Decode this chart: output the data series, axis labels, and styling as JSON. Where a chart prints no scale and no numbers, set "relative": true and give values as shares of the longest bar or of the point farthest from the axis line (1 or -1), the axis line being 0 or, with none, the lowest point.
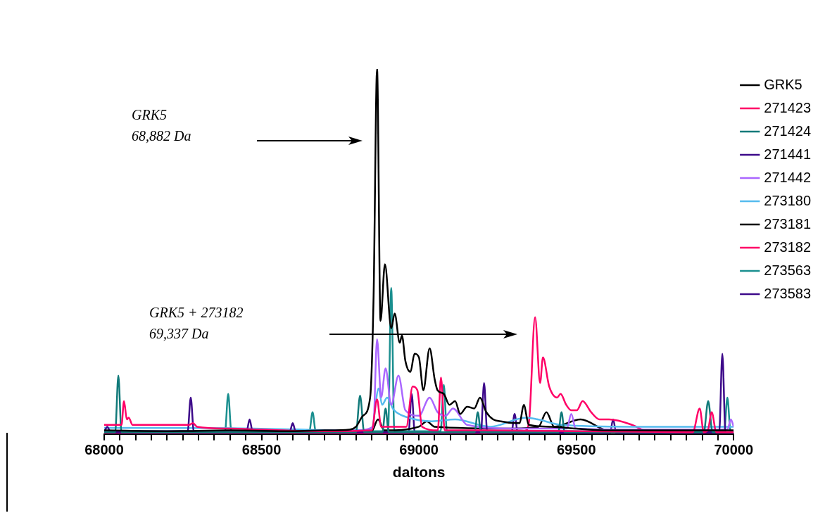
{
  "chart_data": {
    "type": "line",
    "relative": true,
    "xlabel": "daltons",
    "xlim": [
      68000,
      70000
    ],
    "xticks": [
      68000,
      {
        "value": 68050,
        "label": null
      },
      {
        "value": 68100,
        "label": null
      },
      {
        "value": 68150,
        "label": null
      },
      {
        "value": 68200,
        "label": null
      },
      {
        "value": 68250,
        "label": null
      },
      {
        "value": 68300,
        "label": null
      },
      {
        "value": 68350,
        "label": null
      },
      {
        "value": 68400,
        "label": null
      },
      {
        "value": 68450,
        "label": null
      },
      68500,
      {
        "value": 68550,
        "label": null
      },
      {
        "value": 68600,
        "label": null
      },
      {
        "value": 68650,
        "label": null
      },
      {
        "value": 68700,
        "label": null
      },
      {
        "value": 68750,
        "label": null
      },
      {
        "value": 68800,
        "label": null
      },
      {
        "value": 68850,
        "label": null
      },
      {
        "value": 68900,
        "label": null
      },
      {
        "value": 68950,
        "label": null
      },
      69000,
      {
        "value": 69050,
        "label": null
      },
      {
        "value": 69100,
        "label": null
      },
      {
        "value": 69150,
        "label": null
      },
      {
        "value": 69200,
        "label": null
      },
      {
        "value": 69250,
        "label": null
      },
      {
        "value": 69300,
        "label": null
      },
      {
        "value": 69350,
        "label": null
      },
      {
        "value": 69400,
        "label": null
      },
      {
        "value": 69450,
        "label": null
      },
      69500,
      {
        "value": 69550,
        "label": null
      },
      {
        "value": 69600,
        "label": null
      },
      {
        "value": 69650,
        "label": null
      },
      {
        "value": 69700,
        "label": null
      },
      {
        "value": 69750,
        "label": null
      },
      {
        "value": 69800,
        "label": null
      },
      {
        "value": 69850,
        "label": null
      },
      {
        "value": 69900,
        "label": null
      },
      {
        "value": 69950,
        "label": null
      },
      70000
    ],
    "grid": false,
    "legend": "top right",
    "marker": "none",
    "line_style": "solid",
    "annotations": [
      "GRK5\n68,882 Da",
      "GRK5 + 273182\n69,337 Da"
    ],
    "series": [
      {
        "name": "GRK5",
        "color": "#000000",
        "x": [
          68000,
          68200,
          68400,
          68600,
          68700,
          68780,
          68800,
          68822,
          68845,
          68856,
          68867,
          68878,
          68892,
          68912,
          68923,
          68939,
          68946,
          68957,
          68973,
          68986,
          69000,
          69014,
          69034,
          69050,
          69059,
          69079,
          69097,
          69115,
          69131,
          69153,
          69176,
          69194,
          69214,
          69236,
          69259,
          69304,
          69320,
          69333,
          69349,
          69420,
          69500,
          69600,
          69800,
          70000
        ],
        "values": [
          0.01,
          0.008,
          0.01,
          0.008,
          0.01,
          0.012,
          0.02,
          0.05,
          0.1,
          0.38,
          1,
          0.31,
          0.465,
          0.29,
          0.33,
          0.25,
          0.27,
          0.2,
          0.17,
          0.22,
          0.21,
          0.12,
          0.235,
          0.15,
          0.12,
          0.11,
          0.08,
          0.09,
          0.055,
          0.075,
          0.07,
          0.1,
          0.06,
          0.04,
          0.035,
          0.03,
          0.03,
          0.08,
          0.025,
          0.02,
          0.015,
          0.01,
          0.01,
          0.01
        ]
      },
      {
        "name": "271423",
        "color": "#ff0066",
        "x": [
          68000,
          68040,
          68055,
          68063,
          68072,
          68078,
          68090,
          68200,
          68270,
          68282,
          68295,
          68400,
          68500,
          68700,
          68850,
          68867,
          68880,
          68960,
          68980,
          68995,
          69010,
          69060,
          69070,
          69082,
          69200,
          69500,
          69870,
          69892,
          69905,
          69918,
          69930,
          69945,
          70000
        ],
        "values": [
          0.025,
          0.025,
          0.025,
          0.09,
          0.04,
          0.045,
          0.025,
          0.025,
          0.025,
          0.03,
          0.02,
          0.015,
          0.012,
          0.008,
          0.01,
          0.095,
          0.02,
          0.02,
          0.13,
          0.12,
          0.02,
          0.01,
          0.155,
          0.01,
          0.01,
          0.008,
          0.005,
          0.07,
          0.005,
          0.01,
          0.06,
          0.005,
          0.005
        ]
      },
      {
        "name": "271424",
        "color": "#117a7a",
        "x": [
          68000,
          68035,
          68045,
          68055,
          68300,
          68800,
          68813,
          68826,
          68884,
          68894,
          68904,
          69177,
          69187,
          69197,
          69443,
          69453,
          69463,
          69905,
          69919,
          69933,
          70000
        ],
        "values": [
          0.005,
          0.005,
          0.16,
          0.005,
          0.005,
          0.005,
          0.105,
          0.005,
          0.005,
          0.07,
          0.005,
          0.005,
          0.06,
          0.005,
          0.005,
          0.06,
          0.005,
          0.005,
          0.09,
          0.005,
          0.005
        ]
      },
      {
        "name": "271441",
        "color": "#3d0a8a",
        "x": [
          68000,
          68010,
          68020,
          68265,
          68275,
          68285,
          68452,
          68462,
          68472,
          68589,
          68599,
          68609,
          69197,
          69207,
          69217,
          69954,
          69964,
          69974,
          70000
        ],
        "values": [
          0.005,
          0.02,
          0.005,
          0.005,
          0.1,
          0.005,
          0.005,
          0.04,
          0.005,
          0.005,
          0.03,
          0.005,
          0.005,
          0.14,
          0.005,
          0.005,
          0.22,
          0.005,
          0.005
        ]
      },
      {
        "name": "271442",
        "color": "#aa66ff",
        "x": [
          68000,
          68500,
          68800,
          68855,
          68867,
          68880,
          68894,
          68912,
          68935,
          68957,
          69000,
          69034,
          69059,
          69085,
          69108,
          69153,
          69300,
          69470,
          69484,
          69498,
          69700,
          69980,
          69991,
          70000
        ],
        "values": [
          0.008,
          0.008,
          0.01,
          0.02,
          0.26,
          0.1,
          0.18,
          0.08,
          0.16,
          0.065,
          0.05,
          0.1,
          0.06,
          0.05,
          0.07,
          0.025,
          0.015,
          0.015,
          0.055,
          0.015,
          0.012,
          0.012,
          0.04,
          0.02
        ]
      },
      {
        "name": "273180",
        "color": "#55bbee",
        "x": [
          68000,
          68400,
          68800,
          68850,
          68872,
          68883,
          68899,
          68917,
          68928,
          68966,
          69041,
          69115,
          69227,
          69340,
          69378,
          69453,
          69678,
          70000
        ],
        "values": [
          0.017,
          0.016,
          0.01,
          0.015,
          0.125,
          0.08,
          0.1,
          0.07,
          0.06,
          0.045,
          0.035,
          0.04,
          0.02,
          0.045,
          0.04,
          0.025,
          0.02,
          0.02
        ]
      },
      {
        "name": "273181",
        "color": "#000000",
        "x": [
          68000,
          68500,
          68850,
          68870,
          68890,
          69000,
          69025,
          69050,
          69300,
          69380,
          69405,
          69430,
          69514,
          69600,
          70000
        ],
        "values": [
          0.005,
          0.005,
          0.008,
          0.04,
          0.01,
          0.02,
          0.035,
          0.02,
          0.015,
          0.02,
          0.06,
          0.02,
          0.04,
          0.01,
          0.005
        ]
      },
      {
        "name": "273182",
        "color": "#ff0066",
        "x": [
          68000,
          68500,
          69000,
          69300,
          69340,
          69351,
          69369,
          69385,
          69394,
          69414,
          69439,
          69450,
          69468,
          69484,
          69502,
          69520,
          69547,
          69574,
          69604,
          69678,
          69716,
          69800,
          70000
        ],
        "values": [
          0.003,
          0.003,
          0.003,
          0.004,
          0.01,
          0.045,
          0.32,
          0.14,
          0.21,
          0.13,
          0.1,
          0.11,
          0.08,
          0.065,
          0.065,
          0.09,
          0.06,
          0.04,
          0.04,
          0.025,
          0.01,
          0.005,
          0.005
        ]
      },
      {
        "name": "273563",
        "color": "#1a8f8f",
        "x": [
          68000,
          68384,
          68394,
          68404,
          68652,
          68662,
          68672,
          68902,
          68912,
          68922,
          69069,
          69079,
          69089,
          69970,
          69980,
          69990,
          70000
        ],
        "values": [
          0.008,
          0.008,
          0.11,
          0.008,
          0.008,
          0.06,
          0.008,
          0.008,
          0.4,
          0.008,
          0.008,
          0.135,
          0.008,
          0.008,
          0.1,
          0.008,
          0.008
        ]
      },
      {
        "name": "273583",
        "color": "#3d0a8a",
        "x": [
          68000,
          68967,
          68977,
          68987,
          69294,
          69304,
          69314,
          69607,
          69617,
          69627,
          70000
        ],
        "values": [
          0.003,
          0.003,
          0.11,
          0.003,
          0.003,
          0.055,
          0.003,
          0.003,
          0.04,
          0.003,
          0.003
        ]
      }
    ]
  }
}
